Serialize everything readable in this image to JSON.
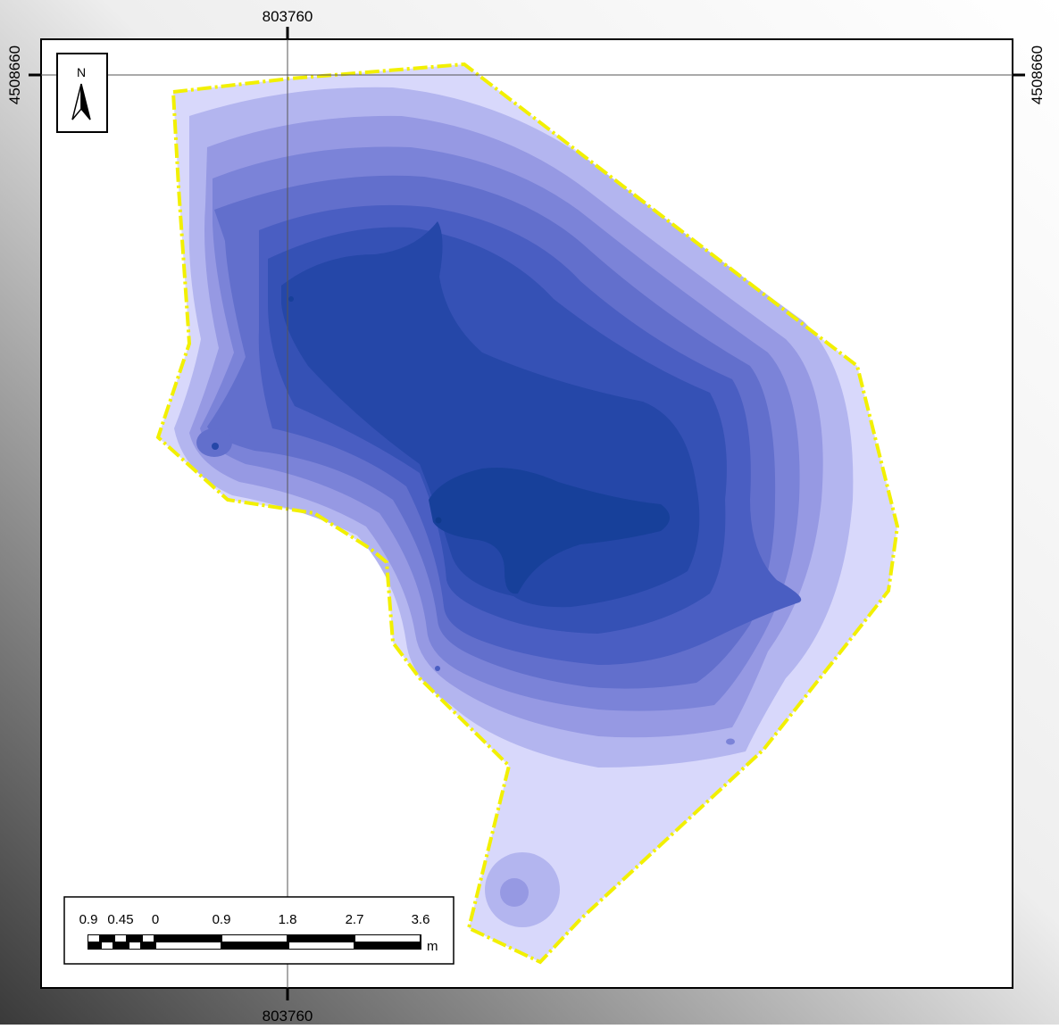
{
  "map": {
    "grid_labels": {
      "x_top": "803760",
      "x_bottom": "803760",
      "y_left": "4508660",
      "y_right": "4508660"
    },
    "north_arrow": {
      "label": "N"
    },
    "scale_bar": {
      "ticks": [
        "0.9",
        "0.45",
        "0",
        "0.9",
        "1.8",
        "2.7",
        "3.6"
      ],
      "unit": "m"
    },
    "colors": {
      "boundary": "#f2f000",
      "levels": [
        "#d8d8fb",
        "#b3b5ef",
        "#9699e3",
        "#7b83d8",
        "#626fcc",
        "#4a5ec2",
        "#3551b5",
        "#2547a8",
        "#17409a"
      ]
    }
  }
}
